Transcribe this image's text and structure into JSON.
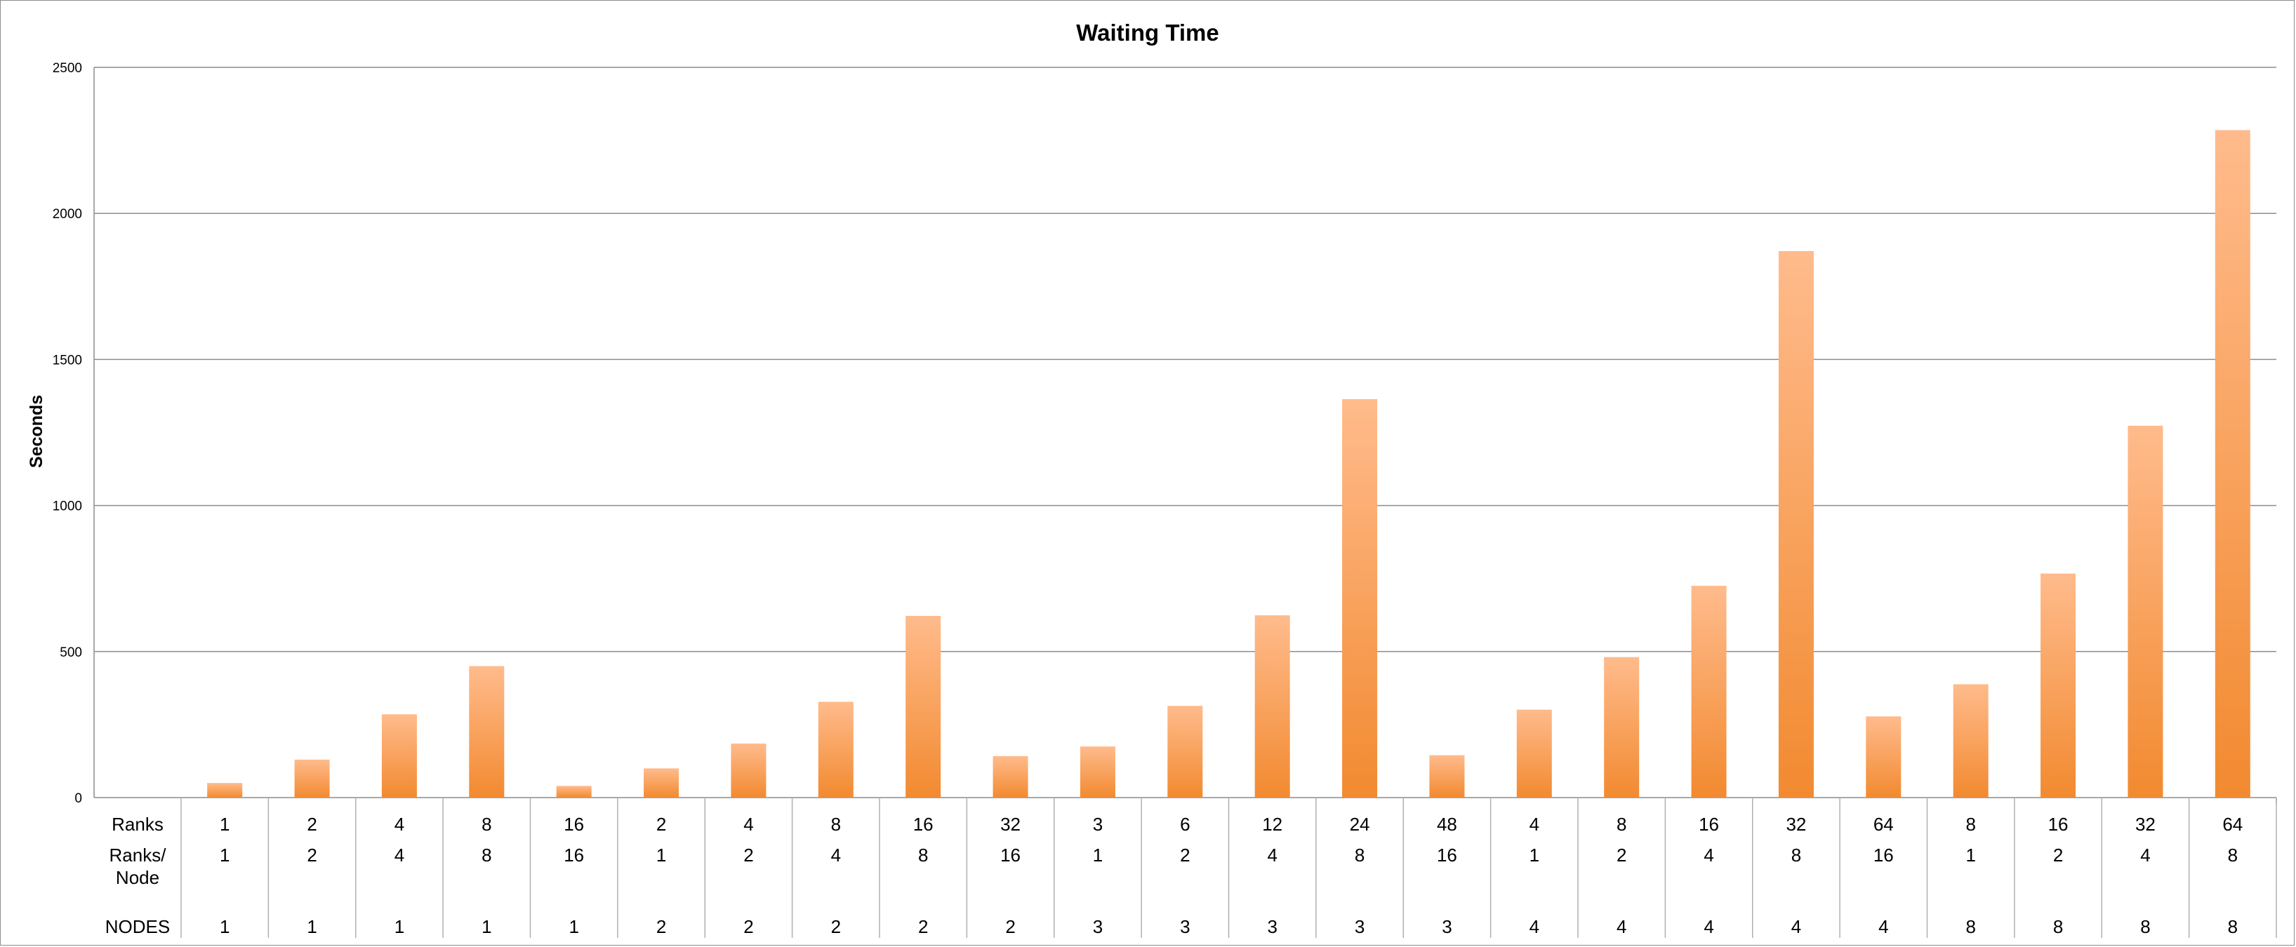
{
  "colors": {
    "bar_top": "#ffbb8c",
    "bar_bottom": "#f28a30",
    "grid": "#8c8c8c",
    "table_line": "#b0b0b0"
  },
  "chart_data": {
    "type": "bar",
    "title": "Waiting Time",
    "xlabel": "",
    "ylabel": "Seconds",
    "ylim": [
      0,
      2500
    ],
    "yticks": [
      "0",
      "500",
      "1000",
      "1500",
      "2000",
      "2500"
    ],
    "grid": true,
    "legend": "none",
    "categories": [
      {
        "ranks": "1",
        "ranks_per_node": "1",
        "nodes": "1"
      },
      {
        "ranks": "2",
        "ranks_per_node": "2",
        "nodes": "1"
      },
      {
        "ranks": "4",
        "ranks_per_node": "4",
        "nodes": "1"
      },
      {
        "ranks": "8",
        "ranks_per_node": "8",
        "nodes": "1"
      },
      {
        "ranks": "16",
        "ranks_per_node": "16",
        "nodes": "1"
      },
      {
        "ranks": "2",
        "ranks_per_node": "1",
        "nodes": "2"
      },
      {
        "ranks": "4",
        "ranks_per_node": "2",
        "nodes": "2"
      },
      {
        "ranks": "8",
        "ranks_per_node": "4",
        "nodes": "2"
      },
      {
        "ranks": "16",
        "ranks_per_node": "8",
        "nodes": "2"
      },
      {
        "ranks": "32",
        "ranks_per_node": "16",
        "nodes": "2"
      },
      {
        "ranks": "3",
        "ranks_per_node": "1",
        "nodes": "3"
      },
      {
        "ranks": "6",
        "ranks_per_node": "2",
        "nodes": "3"
      },
      {
        "ranks": "12",
        "ranks_per_node": "4",
        "nodes": "3"
      },
      {
        "ranks": "24",
        "ranks_per_node": "8",
        "nodes": "3"
      },
      {
        "ranks": "48",
        "ranks_per_node": "16",
        "nodes": "3"
      },
      {
        "ranks": "4",
        "ranks_per_node": "1",
        "nodes": "4"
      },
      {
        "ranks": "8",
        "ranks_per_node": "2",
        "nodes": "4"
      },
      {
        "ranks": "16",
        "ranks_per_node": "4",
        "nodes": "4"
      },
      {
        "ranks": "32",
        "ranks_per_node": "8",
        "nodes": "4"
      },
      {
        "ranks": "64",
        "ranks_per_node": "16",
        "nodes": "4"
      },
      {
        "ranks": "8",
        "ranks_per_node": "1",
        "nodes": "8"
      },
      {
        "ranks": "16",
        "ranks_per_node": "2",
        "nodes": "8"
      },
      {
        "ranks": "32",
        "ranks_per_node": "4",
        "nodes": "8"
      },
      {
        "ranks": "64",
        "ranks_per_node": "8",
        "nodes": "8"
      }
    ],
    "values": [
      50,
      130,
      285,
      450,
      40,
      100,
      185,
      328,
      622,
      142,
      175,
      314,
      624,
      1364,
      145,
      301,
      481,
      725,
      1871,
      278,
      388,
      767,
      1273,
      2285
    ],
    "table_rows": [
      {
        "label_lines": [
          "Ranks"
        ],
        "key": "ranks"
      },
      {
        "label_lines": [
          "Ranks/",
          "Node"
        ],
        "key": "ranks_per_node"
      },
      {
        "label_lines": [
          "NODES"
        ],
        "key": "nodes"
      }
    ]
  }
}
